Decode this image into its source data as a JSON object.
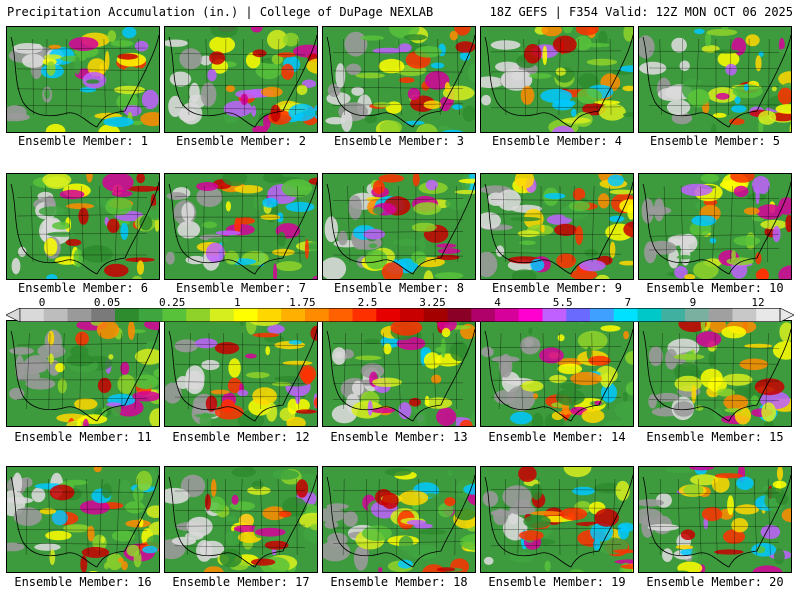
{
  "header": {
    "left": "Precipitation Accumulation (in.) | College of DuPage NEXLAB",
    "right": "18Z GEFS | F354 Valid: 12Z MON OCT 06 2025"
  },
  "members": [
    {
      "label": "Ensemble Member: 1"
    },
    {
      "label": "Ensemble Member: 2"
    },
    {
      "label": "Ensemble Member: 3"
    },
    {
      "label": "Ensemble Member: 4"
    },
    {
      "label": "Ensemble Member: 5"
    },
    {
      "label": "Ensemble Member: 6"
    },
    {
      "label": "Ensemble Member: 7"
    },
    {
      "label": "Ensemble Member: 8"
    },
    {
      "label": "Ensemble Member: 9"
    },
    {
      "label": "Ensemble Member: 10"
    },
    {
      "label": "Ensemble Member: 11"
    },
    {
      "label": "Ensemble Member: 12"
    },
    {
      "label": "Ensemble Member: 13"
    },
    {
      "label": "Ensemble Member: 14"
    },
    {
      "label": "Ensemble Member: 15"
    },
    {
      "label": "Ensemble Member: 16"
    },
    {
      "label": "Ensemble Member: 17"
    },
    {
      "label": "Ensemble Member: 18"
    },
    {
      "label": "Ensemble Member: 19"
    },
    {
      "label": "Ensemble Member: 20"
    }
  ],
  "colorbar": {
    "labels": [
      "0",
      "0.05",
      "0.25",
      "1",
      "1.75",
      "2.5",
      "3.25",
      "4",
      "5.5",
      "7",
      "9",
      "12"
    ],
    "colors": [
      "#d9d9d9",
      "#bdbdbd",
      "#9a9a9a",
      "#7a7a7a",
      "#2e8b2e",
      "#3fa53f",
      "#57c23a",
      "#8fd32a",
      "#d7ee1e",
      "#ffff00",
      "#ffd700",
      "#ffb000",
      "#ff8c00",
      "#ff6000",
      "#ff3000",
      "#e60000",
      "#c80000",
      "#a50000",
      "#8b0026",
      "#b0006a",
      "#d6009a",
      "#ff00d0",
      "#c060ff",
      "#6a6aff",
      "#40a0ff",
      "#00e0ff",
      "#00c8c8",
      "#40b0a0",
      "#7ab0a0",
      "#a0a0a0",
      "#c8c8c8",
      "#e8e8e8"
    ]
  }
}
